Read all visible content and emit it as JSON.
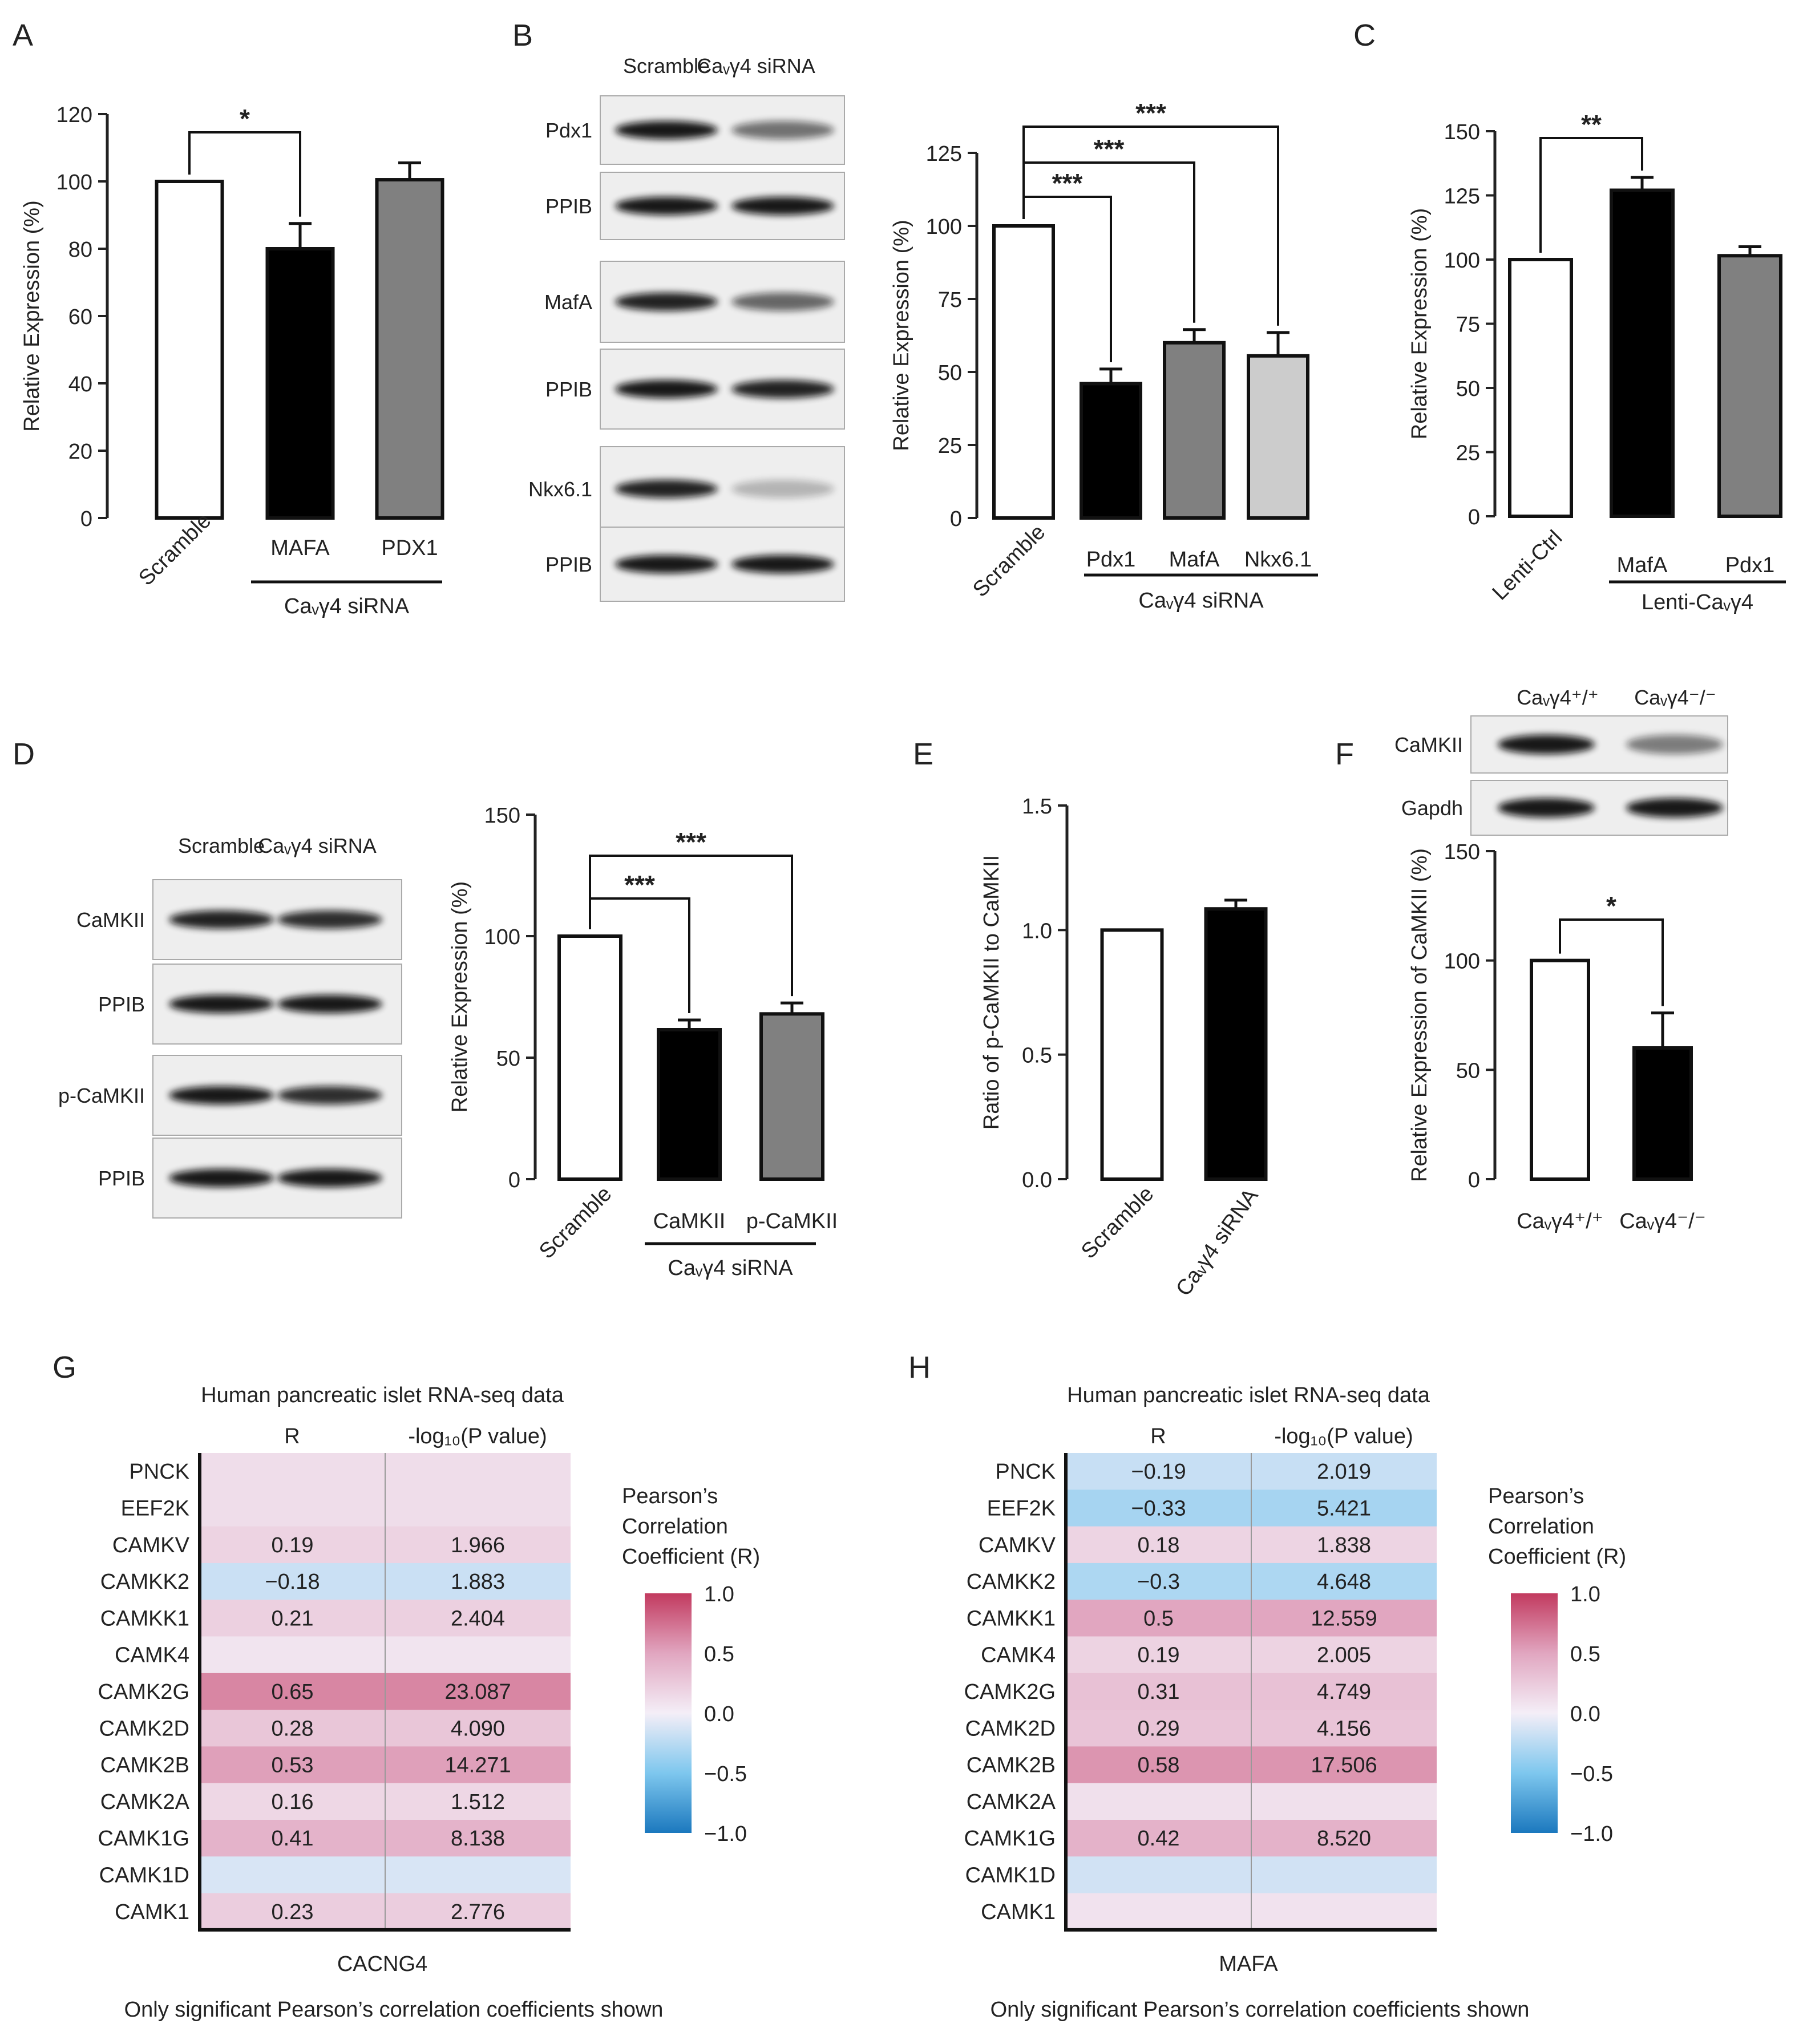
{
  "panel_letters": [
    "A",
    "B",
    "C",
    "D",
    "E",
    "F",
    "G",
    "H"
  ],
  "chart_data": [
    {
      "id": "A",
      "type": "bar",
      "ylabel": "Relative Expression (%)",
      "ylim": [
        0,
        120
      ],
      "yticks": [
        "0",
        "20",
        "40",
        "60",
        "80",
        "100",
        "120"
      ],
      "categories": [
        "Scramble",
        "MAFA",
        "PDX1"
      ],
      "values": [
        100,
        80,
        100.5
      ],
      "errors": [
        0,
        7.5,
        5
      ],
      "colors": [
        "#ffffff",
        "#000000",
        "#808080"
      ],
      "group_label": "Caᵥγ4 siRNA",
      "significance": [
        {
          "from": 0,
          "to": 1,
          "label": "*"
        }
      ]
    },
    {
      "id": "B",
      "type": "bar",
      "ylabel": "Relative Expression (%)",
      "ylim": [
        0,
        125
      ],
      "yticks": [
        "0",
        "25",
        "50",
        "75",
        "100",
        "125"
      ],
      "categories": [
        "Scramble",
        "Pdx1",
        "MafA",
        "Nkx6.1"
      ],
      "values": [
        100,
        46,
        60,
        55.5
      ],
      "errors": [
        0,
        5,
        4.5,
        8
      ],
      "colors": [
        "#ffffff",
        "#000000",
        "#808080",
        "#cccccc"
      ],
      "group_label": "Caᵥγ4 siRNA",
      "significance": [
        {
          "from": 0,
          "to": 1,
          "label": "***"
        },
        {
          "from": 0,
          "to": 2,
          "label": "***"
        },
        {
          "from": 0,
          "to": 3,
          "label": "***"
        }
      ]
    },
    {
      "id": "C",
      "type": "bar",
      "ylabel": "Relative Expression (%)",
      "ylim": [
        0,
        150
      ],
      "yticks": [
        "0",
        "25",
        "50",
        "75",
        "100",
        "125",
        "150"
      ],
      "categories": [
        "Lenti-Ctrl",
        "MafA",
        "Pdx1"
      ],
      "values": [
        100,
        127,
        101.5
      ],
      "errors": [
        0,
        5,
        3.5
      ],
      "colors": [
        "#ffffff",
        "#000000",
        "#808080"
      ],
      "group_label": "Lenti-Caᵥγ4",
      "significance": [
        {
          "from": 0,
          "to": 1,
          "label": "**"
        }
      ]
    },
    {
      "id": "D",
      "type": "bar",
      "ylabel": "Relative Expression (%)",
      "ylim": [
        0,
        150
      ],
      "yticks": [
        "0",
        "50",
        "100",
        "150"
      ],
      "categories": [
        "Scramble",
        "CaMKII",
        "p-CaMKII"
      ],
      "values": [
        100,
        61.5,
        68
      ],
      "errors": [
        0,
        4,
        4.5
      ],
      "colors": [
        "#ffffff",
        "#000000",
        "#808080"
      ],
      "group_label": "Caᵥγ4 siRNA",
      "significance": [
        {
          "from": 0,
          "to": 1,
          "label": "***"
        },
        {
          "from": 0,
          "to": 2,
          "label": "***"
        }
      ]
    },
    {
      "id": "E",
      "type": "bar",
      "ylabel": "Ratio of p-CaMKII to CaMKII",
      "ylim": [
        0,
        1.5
      ],
      "yticks": [
        "0.0",
        "0.5",
        "1.0",
        "1.5"
      ],
      "categories": [
        "Scramble",
        "Caᵥγ4 siRNA"
      ],
      "values": [
        1.0,
        1.085
      ],
      "errors": [
        0,
        0.035
      ],
      "colors": [
        "#ffffff",
        "#000000"
      ],
      "group_label": "",
      "significance": []
    },
    {
      "id": "F",
      "type": "bar",
      "ylabel": "Relative Expression of CaMKII (%)",
      "ylim": [
        0,
        150
      ],
      "yticks": [
        "0",
        "50",
        "100",
        "150"
      ],
      "categories": [
        "Caᵥγ4⁺/⁺",
        "Caᵥγ4⁻/⁻"
      ],
      "values": [
        100,
        60
      ],
      "errors": [
        0,
        16
      ],
      "colors": [
        "#ffffff",
        "#000000"
      ],
      "group_label": "",
      "significance": [
        {
          "from": 0,
          "to": 1,
          "label": "*"
        }
      ]
    },
    {
      "id": "G",
      "type": "heatmap",
      "title": "Human pancreatic islet RNA-seq data",
      "columns": [
        "R",
        "-log₁₀(P value)"
      ],
      "rows": [
        "PNCK",
        "EEF2K",
        "CAMKV",
        "CAMKK2",
        "CAMKK1",
        "CAMK4",
        "CAMK2G",
        "CAMK2D",
        "CAMK2B",
        "CAMK2A",
        "CAMK1G",
        "CAMK1D",
        "CAMK1"
      ],
      "r": [
        null,
        null,
        0.19,
        -0.18,
        0.21,
        null,
        0.65,
        0.28,
        0.53,
        0.16,
        0.41,
        null,
        0.23
      ],
      "cell_r": [
        0.12,
        0.12,
        0.19,
        -0.18,
        0.21,
        0.07,
        0.65,
        0.28,
        0.53,
        0.16,
        0.41,
        -0.12,
        0.23
      ],
      "r_text": [
        "",
        "",
        "0.19",
        "−0.18",
        "0.21",
        "",
        "0.65",
        "0.28",
        "0.53",
        "0.16",
        "0.41",
        "",
        "0.23"
      ],
      "p_text": [
        "",
        "",
        "1.966",
        "1.883",
        "2.404",
        "",
        "23.087",
        "4.090",
        "14.271",
        "1.512",
        "8.138",
        "",
        "2.776"
      ],
      "xlabel": "CACNG4",
      "footnote": "Only significant Pearson’s correlation coefficients shown"
    },
    {
      "id": "H",
      "type": "heatmap",
      "title": "Human pancreatic islet RNA-seq data",
      "columns": [
        "R",
        "-log₁₀(P value)"
      ],
      "rows": [
        "PNCK",
        "EEF2K",
        "CAMKV",
        "CAMKK2",
        "CAMKK1",
        "CAMK4",
        "CAMK2G",
        "CAMK2D",
        "CAMK2B",
        "CAMK2A",
        "CAMK1G",
        "CAMK1D",
        "CAMK1"
      ],
      "r": [
        -0.19,
        -0.33,
        0.18,
        -0.3,
        0.5,
        0.19,
        0.31,
        0.29,
        0.58,
        null,
        0.42,
        null,
        null
      ],
      "cell_r": [
        -0.19,
        -0.33,
        0.18,
        -0.3,
        0.5,
        0.19,
        0.31,
        0.29,
        0.58,
        0.1,
        0.42,
        -0.15,
        0.08
      ],
      "r_text": [
        "−0.19",
        "−0.33",
        "0.18",
        "−0.3",
        "0.5",
        "0.19",
        "0.31",
        "0.29",
        "0.58",
        "",
        "0.42",
        "",
        ""
      ],
      "p_text": [
        "2.019",
        "5.421",
        "1.838",
        "4.648",
        "12.559",
        "2.005",
        "4.749",
        "4.156",
        "17.506",
        "",
        "8.520",
        "",
        ""
      ],
      "xlabel": "MAFA",
      "footnote": "Only significant Pearson’s correlation coefficients shown"
    }
  ],
  "colorbar": {
    "title": [
      "Pearson’s",
      "Correlation",
      "Coefficient (R)"
    ],
    "ticks": [
      "1.0",
      "0.5",
      "0.0",
      "−0.5",
      "−1.0"
    ],
    "colors": [
      "#c23a5f",
      "#e1a6c0",
      "#f4eef7",
      "#7ec7ee",
      "#1b78be"
    ]
  },
  "blots": {
    "B": {
      "lanes": [
        "Scramble",
        "Caᵥγ4 siRNA"
      ],
      "rows": [
        "Pdx1",
        "PPIB",
        "MafA",
        "PPIB",
        "Nkx6.1",
        "PPIB"
      ]
    },
    "D": {
      "lanes": [
        "Scramble",
        "Caᵥγ4 siRNA"
      ],
      "rows": [
        "CaMKII",
        "PPIB",
        "p-CaMKII",
        "PPIB"
      ]
    },
    "F": {
      "lanes": [
        "Caᵥγ4⁺/⁺",
        "Caᵥγ4⁻/⁻"
      ],
      "rows": [
        "CaMKII",
        "Gapdh"
      ]
    }
  }
}
